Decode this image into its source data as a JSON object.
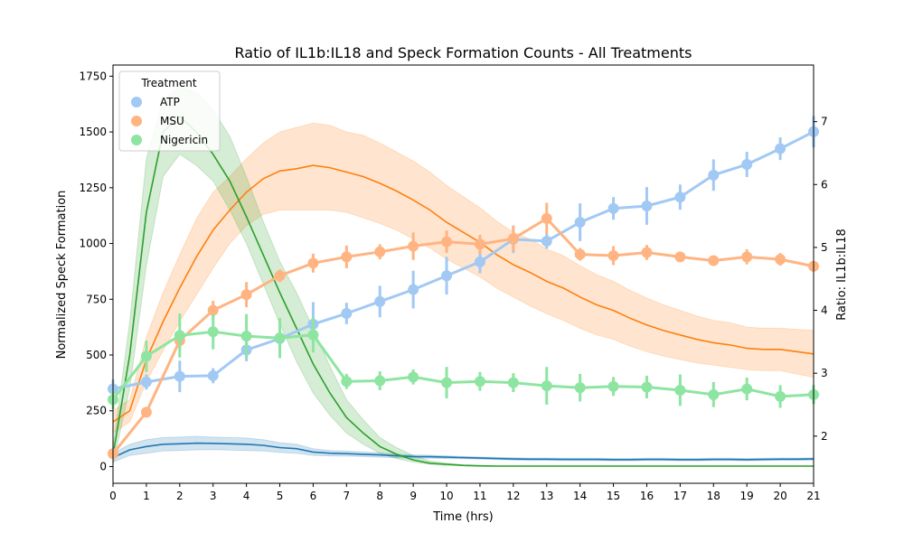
{
  "chart_data": {
    "type": "line",
    "title": "Ratio of IL1b:IL18 and Speck Formation Counts - All Treatments",
    "xlabel": "Time (hrs)",
    "ylabel_left": "Normalized Speck Formation",
    "ylabel_right": "Ratio: IL1b:IL18",
    "xlim": [
      0,
      21
    ],
    "ylim_left": [
      -75,
      1800
    ],
    "ylim_right": [
      1.25,
      7.9
    ],
    "x_ticks": [
      "0",
      "1",
      "2",
      "3",
      "4",
      "5",
      "6",
      "7",
      "8",
      "9",
      "10",
      "11",
      "12",
      "13",
      "14",
      "15",
      "16",
      "17",
      "18",
      "19",
      "20",
      "21"
    ],
    "y_left_ticks": [
      "0",
      "250",
      "500",
      "750",
      "1000",
      "1250",
      "1500",
      "1750"
    ],
    "y_right_ticks": [
      "2",
      "3",
      "4",
      "5",
      "6",
      "7"
    ],
    "legend": {
      "title": "Treatment",
      "entries": [
        "ATP",
        "MSU",
        "Nigericin"
      ],
      "position": "upper-left"
    },
    "colors": {
      "ATP_light": "#a1c9f4",
      "MSU_light": "#ffb482",
      "Nigericin_light": "#8de5a1",
      "ATP_dark": "#1f77b4",
      "MSU_dark": "#ff7f0e",
      "Nigericin_dark": "#2ca02c"
    },
    "speck_series": [
      {
        "name": "ATP",
        "axis": "left",
        "x": [
          0,
          0.5,
          1,
          1.5,
          2,
          2.5,
          3,
          3.5,
          4,
          4.5,
          5,
          5.5,
          6,
          6.5,
          7,
          7.5,
          8,
          8.5,
          9,
          9.5,
          10,
          10.5,
          11,
          11.5,
          12,
          12.5,
          13,
          13.5,
          14,
          14.5,
          15,
          15.5,
          16,
          16.5,
          17,
          17.5,
          18,
          18.5,
          19,
          19.5,
          20,
          20.5,
          21
        ],
        "y": [
          40,
          75,
          90,
          100,
          102,
          105,
          104,
          102,
          100,
          95,
          85,
          80,
          65,
          60,
          58,
          55,
          52,
          48,
          45,
          44,
          42,
          40,
          38,
          36,
          34,
          33,
          33,
          32,
          32,
          32,
          31,
          31,
          32,
          32,
          31,
          31,
          32,
          32,
          31,
          32,
          33,
          33,
          34
        ],
        "lower": [
          20,
          50,
          60,
          70,
          72,
          75,
          76,
          74,
          72,
          70,
          63,
          60,
          50,
          48,
          47,
          45,
          42,
          40,
          38,
          37,
          36,
          35,
          33,
          31,
          29,
          28,
          28,
          27,
          27,
          27,
          26,
          26,
          27,
          27,
          26,
          26,
          27,
          27,
          26,
          27,
          28,
          28,
          29
        ],
        "upper": [
          60,
          100,
          120,
          130,
          132,
          135,
          132,
          130,
          128,
          120,
          107,
          100,
          80,
          72,
          69,
          65,
          62,
          56,
          52,
          51,
          48,
          45,
          43,
          41,
          39,
          38,
          38,
          37,
          37,
          37,
          36,
          36,
          37,
          37,
          36,
          36,
          37,
          37,
          36,
          37,
          38,
          38,
          39
        ]
      },
      {
        "name": "MSU",
        "axis": "left",
        "x": [
          0,
          0.5,
          1,
          1.5,
          2,
          2.5,
          3,
          3.5,
          4,
          4.5,
          5,
          5.5,
          6,
          6.5,
          7,
          7.5,
          8,
          8.5,
          9,
          9.5,
          10,
          10.5,
          11,
          11.5,
          12,
          12.5,
          13,
          13.5,
          14,
          14.5,
          15,
          15.5,
          16,
          16.5,
          17,
          17.5,
          18,
          18.5,
          19,
          19.5,
          20,
          20.5,
          21
        ],
        "y": [
          200,
          250,
          480,
          650,
          800,
          940,
          1060,
          1150,
          1230,
          1290,
          1325,
          1335,
          1350,
          1340,
          1320,
          1300,
          1270,
          1235,
          1195,
          1150,
          1095,
          1050,
          1005,
          950,
          905,
          870,
          830,
          800,
          760,
          725,
          700,
          665,
          635,
          610,
          590,
          570,
          555,
          545,
          530,
          525,
          525,
          515,
          505
        ],
        "lower": [
          150,
          200,
          380,
          520,
          650,
          770,
          890,
          1000,
          1080,
          1130,
          1150,
          1150,
          1150,
          1150,
          1140,
          1115,
          1090,
          1060,
          1020,
          980,
          930,
          890,
          850,
          800,
          760,
          720,
          685,
          655,
          620,
          590,
          570,
          540,
          515,
          495,
          480,
          465,
          455,
          445,
          435,
          430,
          430,
          415,
          400
        ],
        "upper": [
          250,
          300,
          580,
          780,
          950,
          1110,
          1230,
          1300,
          1380,
          1450,
          1500,
          1520,
          1540,
          1530,
          1500,
          1485,
          1450,
          1410,
          1370,
          1320,
          1260,
          1210,
          1160,
          1100,
          1050,
          1020,
          975,
          945,
          900,
          860,
          830,
          790,
          755,
          725,
          700,
          675,
          655,
          645,
          625,
          620,
          620,
          615,
          610
        ]
      },
      {
        "name": "Nigericin",
        "axis": "left",
        "x": [
          0,
          0.5,
          1,
          1.5,
          2,
          2.5,
          3,
          3.5,
          4,
          4.5,
          5,
          5.5,
          6,
          6.5,
          7,
          7.5,
          8,
          8.5,
          9,
          9.5,
          10,
          10.5,
          11,
          11.5,
          12,
          12.5,
          13,
          13.5,
          14,
          14.5,
          15,
          15.5,
          16,
          16.5,
          17,
          17.5,
          18,
          18.5,
          19,
          19.5,
          20,
          20.5,
          21
        ],
        "y": [
          50,
          500,
          1140,
          1500,
          1570,
          1500,
          1400,
          1280,
          1120,
          950,
          780,
          620,
          460,
          330,
          220,
          150,
          90,
          55,
          30,
          15,
          10,
          5,
          3,
          2,
          2,
          2,
          2,
          2,
          2,
          2,
          2,
          2,
          2,
          2,
          2,
          2,
          2,
          2,
          2,
          2,
          2,
          2,
          2
        ],
        "lower": [
          10,
          350,
          900,
          1300,
          1400,
          1350,
          1280,
          1150,
          1000,
          820,
          640,
          470,
          330,
          230,
          150,
          100,
          60,
          35,
          20,
          10,
          5,
          3,
          1,
          1,
          1,
          1,
          1,
          1,
          1,
          1,
          1,
          1,
          1,
          1,
          1,
          1,
          1,
          1,
          1,
          1,
          1,
          1,
          1
        ],
        "upper": [
          90,
          650,
          1380,
          1650,
          1700,
          1680,
          1600,
          1480,
          1300,
          1100,
          920,
          780,
          620,
          450,
          300,
          210,
          130,
          85,
          50,
          25,
          15,
          8,
          5,
          3,
          3,
          3,
          3,
          3,
          3,
          3,
          3,
          3,
          3,
          3,
          3,
          3,
          3,
          3,
          3,
          3,
          3,
          3,
          3
        ]
      }
    ],
    "ratio_series": [
      {
        "name": "ATP",
        "axis": "right",
        "x": [
          0,
          1,
          2,
          3,
          4,
          5,
          6,
          7,
          8,
          9,
          10,
          11,
          12,
          13,
          14,
          15,
          16,
          17,
          18,
          19,
          20,
          21
        ],
        "y": [
          2.75,
          2.86,
          2.95,
          2.96,
          3.37,
          3.55,
          3.78,
          3.95,
          4.14,
          4.33,
          4.55,
          4.77,
          5.13,
          5.1,
          5.4,
          5.62,
          5.66,
          5.8,
          6.15,
          6.32,
          6.57,
          6.84
        ],
        "err": [
          0.15,
          0.12,
          0.25,
          0.12,
          0.18,
          0.25,
          0.35,
          0.17,
          0.25,
          0.3,
          0.3,
          0.18,
          0.22,
          0.12,
          0.3,
          0.18,
          0.3,
          0.2,
          0.25,
          0.2,
          0.18,
          0.25
        ]
      },
      {
        "name": "MSU",
        "axis": "right",
        "x": [
          0,
          1,
          2,
          3,
          4,
          5,
          6,
          7,
          8,
          9,
          10,
          11,
          12,
          13,
          14,
          15,
          16,
          17,
          18,
          19,
          20,
          21
        ],
        "y": [
          1.72,
          2.38,
          3.52,
          4.0,
          4.25,
          4.55,
          4.75,
          4.85,
          4.93,
          5.02,
          5.09,
          5.05,
          5.14,
          5.46,
          4.89,
          4.87,
          4.92,
          4.85,
          4.79,
          4.85,
          4.81,
          4.7
        ],
        "err": [
          0.06,
          0.08,
          0.15,
          0.15,
          0.2,
          0.1,
          0.15,
          0.18,
          0.12,
          0.22,
          0.18,
          0.15,
          0.2,
          0.25,
          0.1,
          0.15,
          0.12,
          0.08,
          0.08,
          0.12,
          0.1,
          0.08
        ]
      },
      {
        "name": "Nigericin",
        "axis": "right",
        "x": [
          0,
          1,
          2,
          3,
          4,
          5,
          6,
          7,
          8,
          9,
          10,
          11,
          12,
          13,
          14,
          15,
          16,
          17,
          18,
          19,
          20,
          21
        ],
        "y": [
          2.58,
          3.27,
          3.6,
          3.66,
          3.59,
          3.56,
          3.61,
          2.87,
          2.88,
          2.94,
          2.85,
          2.87,
          2.85,
          2.8,
          2.77,
          2.79,
          2.78,
          2.73,
          2.66,
          2.75,
          2.63,
          2.66
        ],
        "err": [
          0.15,
          0.25,
          0.35,
          0.28,
          0.35,
          0.32,
          0.28,
          0.12,
          0.15,
          0.12,
          0.25,
          0.15,
          0.15,
          0.3,
          0.22,
          0.15,
          0.18,
          0.25,
          0.2,
          0.18,
          0.18,
          0.15
        ]
      }
    ]
  }
}
